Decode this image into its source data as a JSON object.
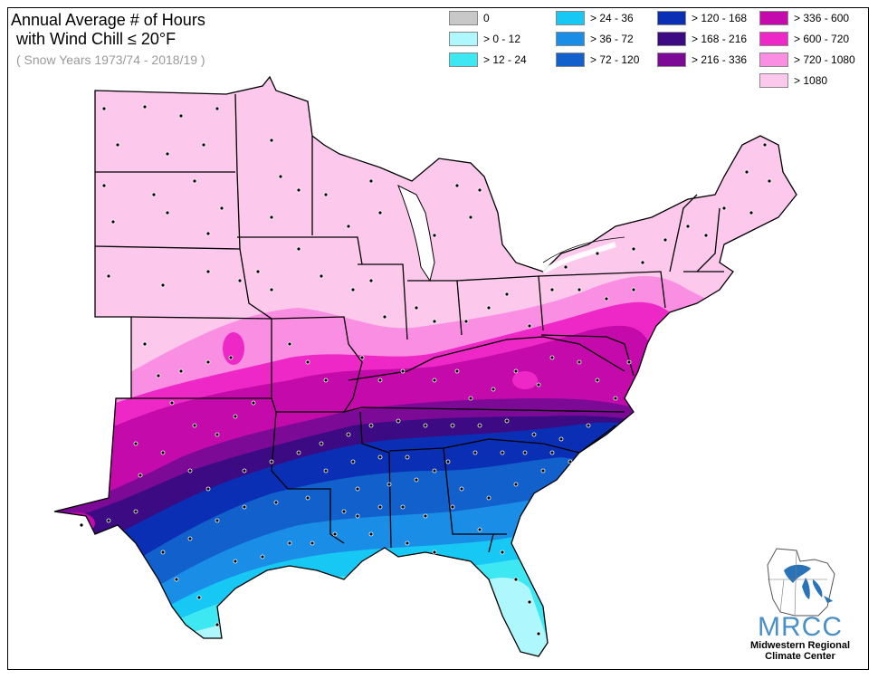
{
  "title": {
    "line1": "Annual Average # of Hours",
    "line2": "with Wind Chill ≤ 20°F",
    "subtitle": "( Snow Years 1973/74 - 2018/19 )"
  },
  "legend": [
    {
      "label": "0",
      "color": "#c8c8c8"
    },
    {
      "label": "> 0 - 12",
      "color": "#aef7fc"
    },
    {
      "label": "> 12 - 24",
      "color": "#3ee8f2"
    },
    {
      "label": "> 24 - 36",
      "color": "#18c8f4"
    },
    {
      "label": "> 36 - 72",
      "color": "#1a8de6"
    },
    {
      "label": "> 72 - 120",
      "color": "#1160cc"
    },
    {
      "label": "> 120 - 168",
      "color": "#0a2fb4"
    },
    {
      "label": "> 168 - 216",
      "color": "#3c0a82"
    },
    {
      "label": "> 216 - 336",
      "color": "#7c0a96"
    },
    {
      "label": "> 336 - 600",
      "color": "#c40aaa"
    },
    {
      "label": "> 600 - 720",
      "color": "#ee28c6"
    },
    {
      "label": "> 720 - 1080",
      "color": "#fa8ee2"
    },
    {
      "label": "> 1080",
      "color": "#fcc8ec"
    }
  ],
  "logo": {
    "name": "MRCC",
    "line1": "Midwestern Regional",
    "line2": "Climate Center",
    "color": "#4a90c8"
  }
}
